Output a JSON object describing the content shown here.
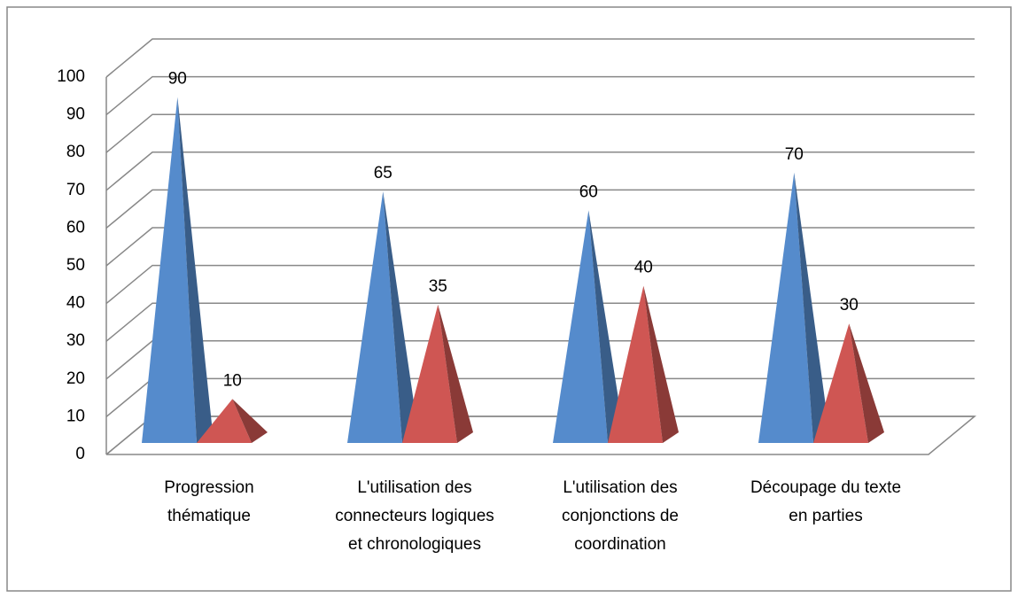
{
  "chart_data": {
    "type": "pyramid3d",
    "categories": [
      "Progression thématique",
      "L'utilisation des connecteurs logiques et chronologiques",
      "L'utilisation des conjonctions de coordination",
      "Découpage du texte en parties"
    ],
    "series": [
      {
        "color": "#4f81bd",
        "values": [
          90,
          65,
          60,
          70
        ]
      },
      {
        "color": "#c0504d",
        "values": [
          10,
          35,
          40,
          30
        ]
      }
    ],
    "ylim": [
      0,
      100
    ],
    "yticks": [
      0,
      10,
      20,
      30,
      40,
      50,
      60,
      70,
      80,
      90,
      100
    ],
    "grid": true
  }
}
